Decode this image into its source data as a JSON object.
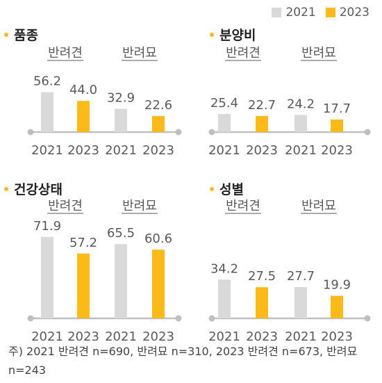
{
  "legend": [
    {
      "name": "2021",
      "color": "#d9d9d9"
    },
    {
      "name": "2023",
      "color": "#fbba17"
    }
  ],
  "bullet_color": "#fbba17",
  "colors": {
    "baseline": "#bfbfbf",
    "text": "#595959"
  },
  "chart_data": [
    {
      "type": "bar",
      "title": "품종",
      "ylim": [
        0,
        80
      ],
      "groups": [
        {
          "label": "반려견",
          "categories": [
            "2021",
            "2023"
          ],
          "values": [
            56.2,
            44.0
          ]
        },
        {
          "label": "반려묘",
          "categories": [
            "2021",
            "2023"
          ],
          "values": [
            32.9,
            22.6
          ]
        }
      ]
    },
    {
      "type": "bar",
      "title": "분양비",
      "ylim": [
        0,
        80
      ],
      "groups": [
        {
          "label": "반려견",
          "categories": [
            "2021",
            "2023"
          ],
          "values": [
            25.4,
            22.7
          ]
        },
        {
          "label": "반려묘",
          "categories": [
            "2021",
            "2023"
          ],
          "values": [
            24.2,
            17.7
          ]
        }
      ]
    },
    {
      "type": "bar",
      "title": "건강상태",
      "ylim": [
        0,
        80
      ],
      "groups": [
        {
          "label": "반려견",
          "categories": [
            "2021",
            "2023"
          ],
          "values": [
            71.9,
            57.2
          ]
        },
        {
          "label": "반려묘",
          "categories": [
            "2021",
            "2023"
          ],
          "values": [
            65.5,
            60.6
          ]
        }
      ]
    },
    {
      "type": "bar",
      "title": "성별",
      "ylim": [
        0,
        80
      ],
      "groups": [
        {
          "label": "반려견",
          "categories": [
            "2021",
            "2023"
          ],
          "values": [
            34.2,
            27.5
          ]
        },
        {
          "label": "반려묘",
          "categories": [
            "2021",
            "2023"
          ],
          "values": [
            27.7,
            19.9
          ]
        }
      ]
    }
  ],
  "footnote": "주) 2021 반려견 n=690, 반려묘 n=310, 2023 반려견 n=673, 반려묘 n=243"
}
